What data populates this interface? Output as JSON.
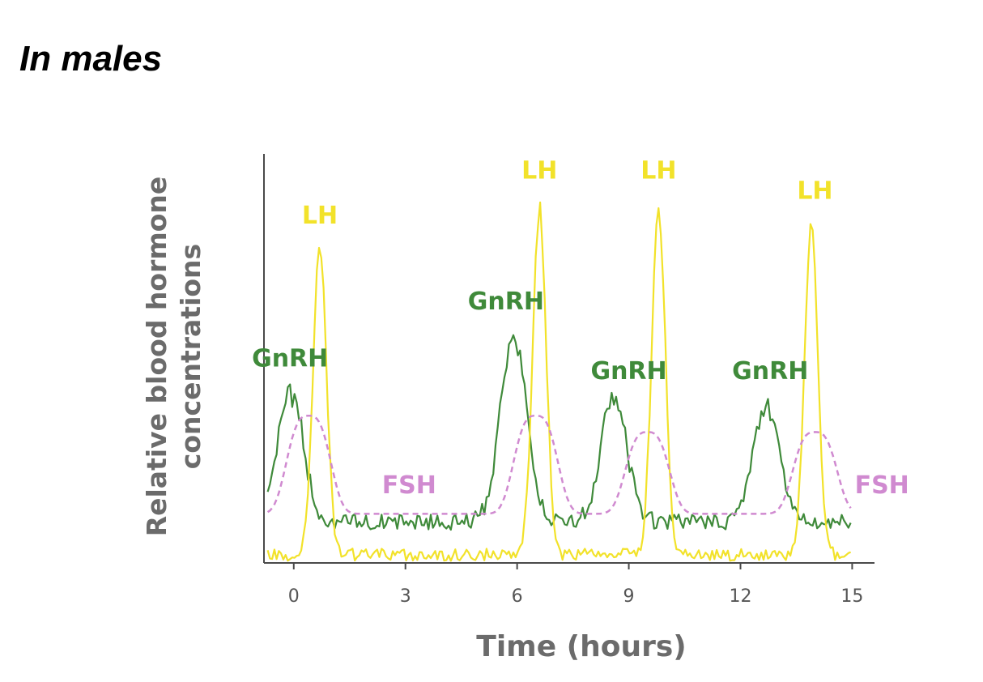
{
  "page": {
    "title": "In males"
  },
  "colors": {
    "gnrh": "#3f8a3a",
    "lh": "#f2e22a",
    "fsh": "#d08ad0",
    "axis": "#4a4a4a",
    "label": "#6b6b6b"
  },
  "chart_data": {
    "type": "line",
    "title": "",
    "xlabel": "Time (hours)",
    "ylabel_lines": [
      "Relative blood hormone",
      "concentrations"
    ],
    "xlim": [
      -0.8,
      15.6
    ],
    "ylim": [
      0,
      100
    ],
    "x_ticks": [
      0,
      3,
      6,
      9,
      12,
      15
    ],
    "grid": false,
    "legend": "none",
    "series": [
      {
        "name": "GnRH",
        "color": "#3f8a3a",
        "style": "solid",
        "peaks": [
          {
            "x": -0.1,
            "y": 42
          },
          {
            "x": 5.9,
            "y": 56
          },
          {
            "x": 8.6,
            "y": 40
          },
          {
            "x": 12.7,
            "y": 39
          }
        ],
        "baseline": 10
      },
      {
        "name": "LH",
        "color": "#f2e22a",
        "style": "solid",
        "peaks": [
          {
            "x": 0.7,
            "y": 77
          },
          {
            "x": 6.6,
            "y": 87
          },
          {
            "x": 9.8,
            "y": 87
          },
          {
            "x": 13.9,
            "y": 83
          }
        ],
        "baseline": 2
      },
      {
        "name": "FSH",
        "color": "#d08ad0",
        "style": "dashed",
        "humps": [
          {
            "x": 0.4,
            "y": 36
          },
          {
            "x": 6.5,
            "y": 36
          },
          {
            "x": 9.5,
            "y": 32
          },
          {
            "x": 14.0,
            "y": 32
          }
        ],
        "baseline": 12
      }
    ],
    "annotations": [
      {
        "text": "GnRH",
        "series": "GnRH",
        "x": -0.1,
        "y": 48
      },
      {
        "text": "GnRH",
        "series": "GnRH",
        "x": 5.7,
        "y": 62
      },
      {
        "text": "GnRH",
        "series": "GnRH",
        "x": 9.0,
        "y": 45
      },
      {
        "text": "GnRH",
        "series": "GnRH",
        "x": 12.8,
        "y": 45
      },
      {
        "text": "LH",
        "series": "LH",
        "x": 0.7,
        "y": 83
      },
      {
        "text": "LH",
        "series": "LH",
        "x": 6.6,
        "y": 94
      },
      {
        "text": "LH",
        "series": "LH",
        "x": 9.8,
        "y": 94
      },
      {
        "text": "LH",
        "series": "LH",
        "x": 14.0,
        "y": 89
      },
      {
        "text": "FSH",
        "series": "FSH",
        "x": 3.1,
        "y": 17
      },
      {
        "text": "FSH",
        "series": "FSH",
        "x": 15.8,
        "y": 17
      }
    ]
  }
}
